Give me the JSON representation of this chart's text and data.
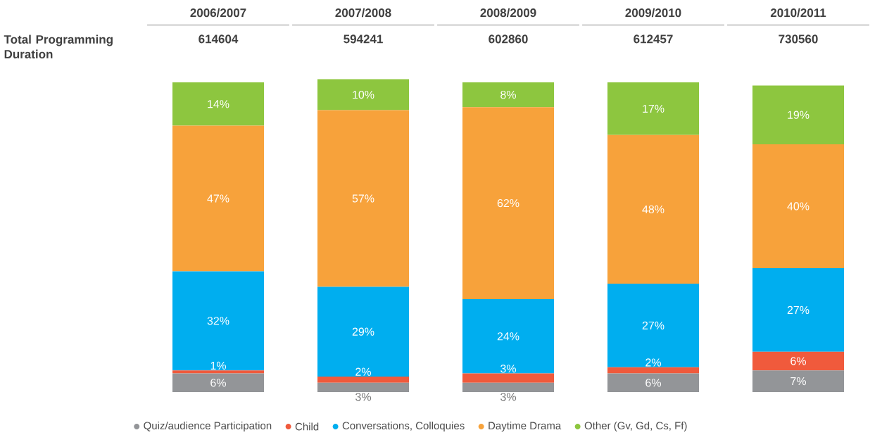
{
  "chart_data": {
    "type": "bar",
    "stacked": true,
    "legend": "bottom",
    "categories": [
      "2006/2007",
      "2007/2008",
      "2008/2009",
      "2009/2010",
      "2010/2011"
    ],
    "series": [
      {
        "name": "Quiz/audience Participation",
        "color": "#939598",
        "values": [
          6,
          3,
          3,
          6,
          7
        ],
        "value_labels": [
          "6%",
          "3%",
          "3%",
          "6%",
          "7%"
        ]
      },
      {
        "name": "Child",
        "color": "#f05a3c",
        "values": [
          1,
          2,
          3,
          2,
          6
        ],
        "value_labels": [
          "1%",
          "2%",
          "3%",
          "2%",
          "6%"
        ]
      },
      {
        "name": "Conversations, Colloquies",
        "color": "#00aeef",
        "values": [
          32,
          29,
          24,
          27,
          27
        ],
        "value_labels": [
          "32%",
          "29%",
          "24%",
          "27%",
          "27%"
        ]
      },
      {
        "name": "Daytime Drama",
        "color": "#f7a23b",
        "values": [
          47,
          57,
          62,
          48,
          40
        ],
        "value_labels": [
          "47%",
          "57%",
          "62%",
          "48%",
          "40%"
        ]
      },
      {
        "name": "Other (Gv, Gd, Cs, Ff)",
        "color": "#8dc63f",
        "values": [
          14,
          10,
          8,
          17,
          19
        ],
        "value_labels": [
          "14%",
          "10%",
          "8%",
          "17%",
          "19%"
        ]
      }
    ],
    "annotations": [
      "Total Programming Duration",
      "614604",
      "594241",
      "602860",
      "612457",
      "730560"
    ]
  }
}
